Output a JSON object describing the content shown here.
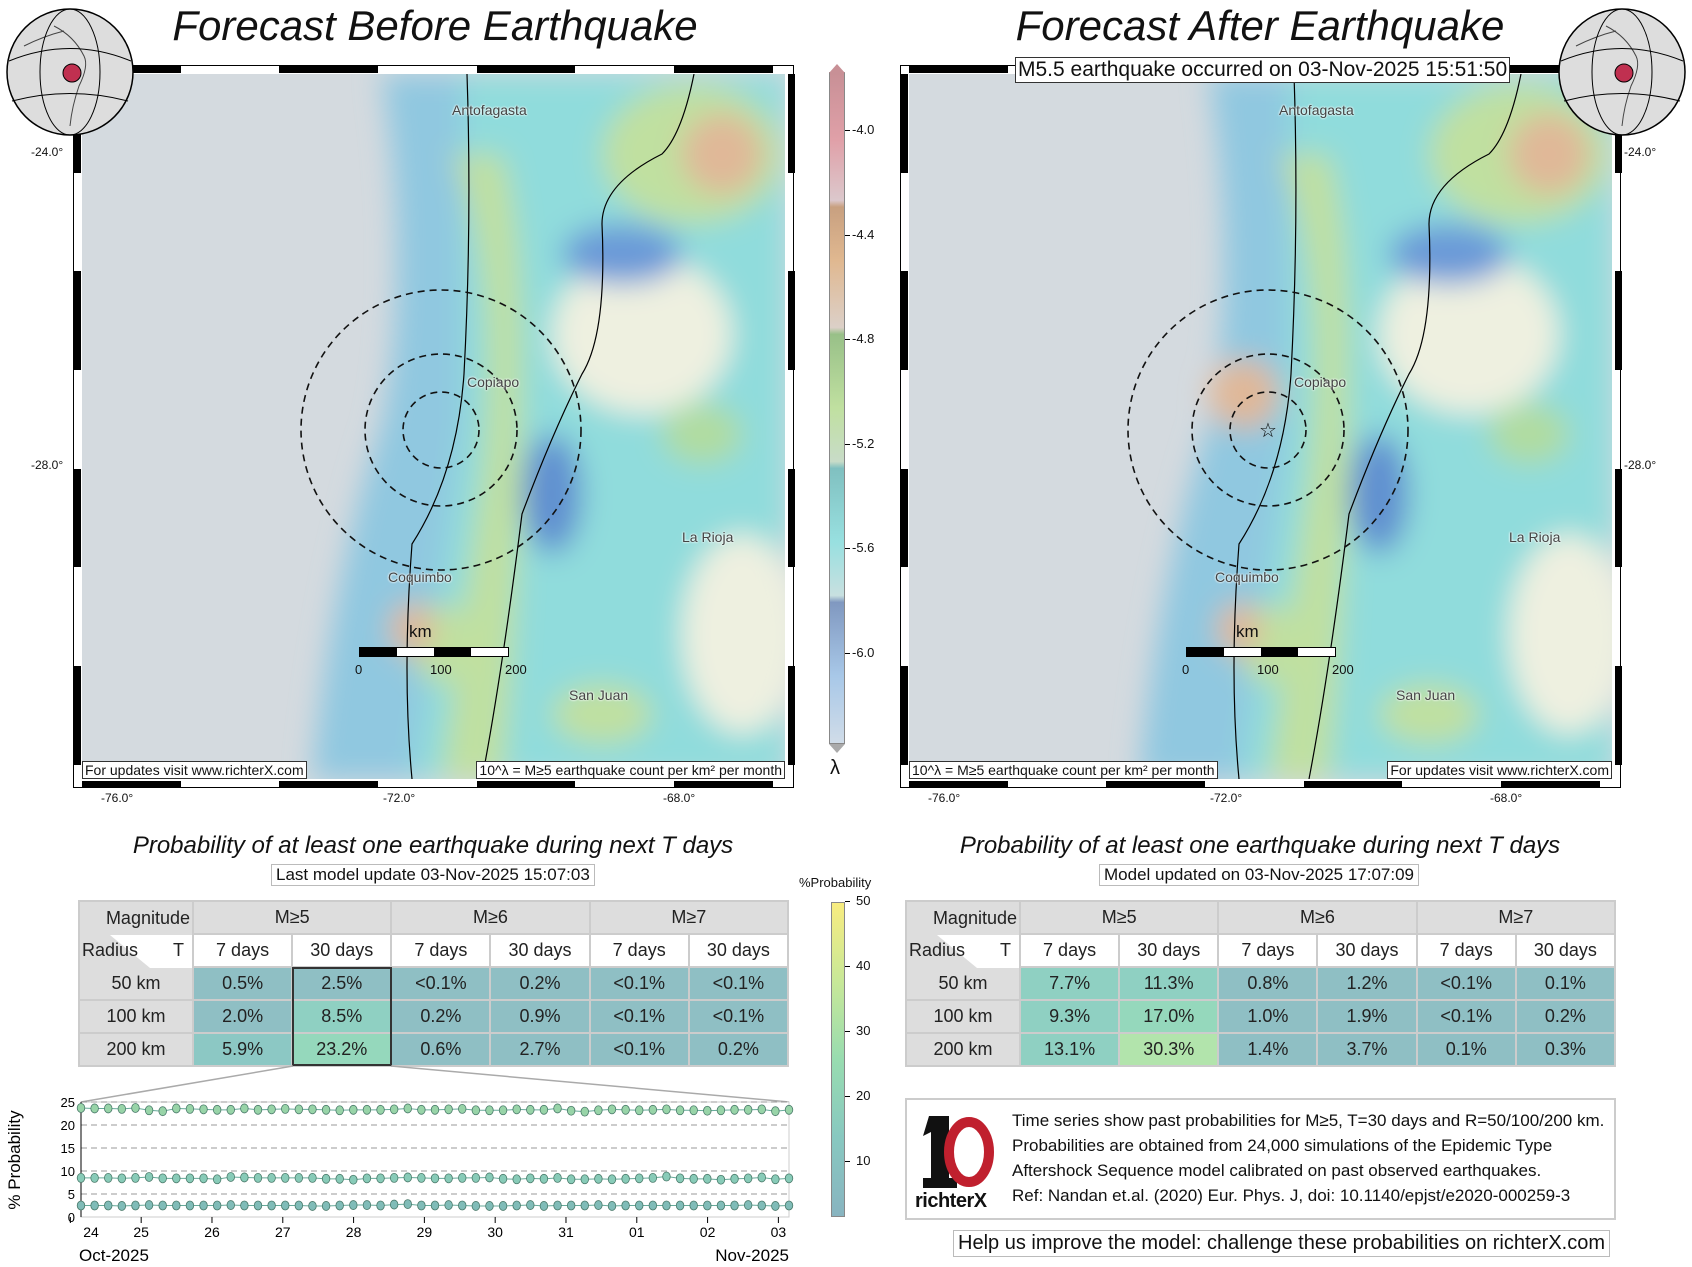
{
  "left_panel": {
    "title": "Forecast Before Earthquake",
    "footer_left": "For updates visit www.richterX.com",
    "footer_right": "10^λ = M≥5 earthquake count per km² per month",
    "lat_labels": [
      "-24.0°",
      "-28.0°"
    ],
    "lon_labels": [
      "-76.0°",
      "-72.0°",
      "-68.0°"
    ],
    "cities": [
      "Antofagasta",
      "Copiapo",
      "La Rioja",
      "Coquimbo",
      "San Juan"
    ],
    "scale_unit": "km",
    "scale_ticks": [
      "0",
      "100",
      "200"
    ],
    "table_title": "Probability of at least one earthquake during next T days",
    "table_subtitle": "Last model update 03-Nov-2025 15:07:03",
    "table": {
      "corner_top": "Magnitude",
      "corner_left": "Radius",
      "corner_right": "T",
      "magnitudes": [
        "M≥5",
        "M≥6",
        "M≥7"
      ],
      "periods": [
        "7 days",
        "30 days",
        "7 days",
        "30 days",
        "7 days",
        "30 days"
      ],
      "rows": [
        {
          "radius": "50 km",
          "values": [
            "0.5%",
            "2.5%",
            "<0.1%",
            "0.2%",
            "<0.1%",
            "<0.1%"
          ]
        },
        {
          "radius": "100 km",
          "values": [
            "2.0%",
            "8.5%",
            "0.2%",
            "0.9%",
            "<0.1%",
            "<0.1%"
          ]
        },
        {
          "radius": "200 km",
          "values": [
            "5.9%",
            "23.2%",
            "0.6%",
            "2.7%",
            "<0.1%",
            "0.2%"
          ]
        }
      ]
    }
  },
  "right_panel": {
    "title": "Forecast After Earthquake",
    "event_note": "M5.5 earthquake occurred on 03-Nov-2025 15:51:50",
    "footer_left": "10^λ = M≥5 earthquake count per km² per month",
    "footer_right": "For updates visit www.richterX.com",
    "lat_labels": [
      "-24.0°",
      "-28.0°"
    ],
    "lon_labels": [
      "-76.0°",
      "-72.0°",
      "-68.0°"
    ],
    "cities": [
      "Antofagasta",
      "Copiapo",
      "La Rioja",
      "Coquimbo",
      "San Juan"
    ],
    "scale_unit": "km",
    "scale_ticks": [
      "0",
      "100",
      "200"
    ],
    "table_title": "Probability of at least one earthquake during next T days",
    "table_subtitle": "Model updated on 03-Nov-2025 17:07:09",
    "table": {
      "corner_top": "Magnitude",
      "corner_left": "Radius",
      "corner_right": "T",
      "magnitudes": [
        "M≥5",
        "M≥6",
        "M≥7"
      ],
      "periods": [
        "7 days",
        "30 days",
        "7 days",
        "30 days",
        "7 days",
        "30 days"
      ],
      "rows": [
        {
          "radius": "50 km",
          "values": [
            "7.7%",
            "11.3%",
            "0.8%",
            "1.2%",
            "<0.1%",
            "0.1%"
          ]
        },
        {
          "radius": "100 km",
          "values": [
            "9.3%",
            "17.0%",
            "1.0%",
            "1.9%",
            "<0.1%",
            "0.2%"
          ]
        },
        {
          "radius": "200 km",
          "values": [
            "13.1%",
            "30.3%",
            "1.4%",
            "3.7%",
            "0.1%",
            "0.3%"
          ]
        }
      ]
    },
    "info_lines": [
      "Time series show past probabilities for M≥5, T=30 days and R=50/100/200 km.",
      "Probabilities are obtained from 24,000 simulations of the Epidemic Type",
      "Aftershock Sequence model calibrated on past observed earthquakes.",
      "Ref: Nandan et.al. (2020) Eur. Phys. J, doi: 10.1140/epjst/e2020-000259-3"
    ],
    "logo_text": "richterX",
    "help_text": "Help us improve the model: challenge these probabilities on richterX.com"
  },
  "lambda_colorbar": {
    "symbol": "λ",
    "ticks": [
      "-4.0",
      "-4.4",
      "-4.8",
      "-5.2",
      "-5.6",
      "-6.0"
    ]
  },
  "prob_colorbar": {
    "label": "%Probability",
    "ticks": [
      "50",
      "40",
      "30",
      "20",
      "10"
    ]
  },
  "colors": {
    "cell_low": "#8fbfc4",
    "cell_mid": "#8fd0c2",
    "cell_high": "#b2e4ac",
    "logo_red": "#c0202e"
  },
  "chart_data": {
    "type": "line",
    "ylabel": "% Probability",
    "ylim": [
      0,
      25
    ],
    "yticks": [
      "0",
      "5",
      "10",
      "15",
      "20",
      "25"
    ],
    "xlim_days": [
      24.15,
      34.15
    ],
    "xticks": [
      {
        "day": 24,
        "label": "24"
      },
      {
        "day": 25,
        "label": "25"
      },
      {
        "day": 26,
        "label": "26"
      },
      {
        "day": 27,
        "label": "27"
      },
      {
        "day": 28,
        "label": "28"
      },
      {
        "day": 29,
        "label": "29"
      },
      {
        "day": 30,
        "label": "30"
      },
      {
        "day": 31,
        "label": "31"
      },
      {
        "day": 32,
        "label": "01"
      },
      {
        "day": 33,
        "label": "02"
      },
      {
        "day": 34,
        "label": "03"
      }
    ],
    "x_start_label": "Oct-2025",
    "x_end_label": "Nov-2025",
    "series": [
      {
        "name": "R=200 km",
        "values": [
          23.7,
          23.6,
          23.6,
          23.5,
          23.7,
          23.2,
          23.0,
          23.6,
          23.5,
          23.4,
          23.3,
          23.3,
          23.6,
          23.3,
          23.4,
          23.5,
          23.4,
          23.4,
          23.3,
          23.2,
          23.3,
          23.3,
          23.3,
          23.4,
          23.6,
          23.3,
          23.3,
          23.4,
          23.5,
          23.2,
          23.2,
          23.2,
          23.4,
          23.3,
          23.3,
          23.6,
          23.1,
          22.9,
          23.2,
          23.4,
          23.3,
          23.2,
          23.3,
          23.4,
          23.2,
          23.2,
          23.1,
          23.2,
          23.3,
          23.3,
          23.4,
          23.0,
          23.3
        ]
      },
      {
        "name": "R=100 km",
        "values": [
          8.5,
          8.5,
          8.5,
          8.4,
          8.5,
          8.7,
          8.4,
          8.4,
          8.4,
          8.4,
          8.2,
          8.7,
          8.6,
          8.5,
          8.5,
          8.5,
          8.5,
          8.5,
          8.3,
          8.3,
          8.1,
          8.4,
          8.4,
          8.5,
          8.6,
          8.5,
          8.4,
          8.4,
          8.5,
          8.5,
          8.6,
          8.3,
          8.2,
          8.4,
          8.3,
          8.5,
          8.2,
          8.2,
          8.3,
          8.2,
          8.3,
          8.4,
          8.5,
          8.8,
          8.4,
          8.3,
          8.3,
          8.1,
          8.3,
          8.4,
          8.6,
          8.2,
          8.4
        ]
      },
      {
        "name": "R=50 km",
        "values": [
          2.5,
          2.5,
          2.5,
          2.4,
          2.5,
          2.6,
          2.5,
          2.5,
          2.5,
          2.5,
          2.5,
          2.6,
          2.5,
          2.5,
          2.5,
          2.5,
          2.5,
          2.4,
          2.4,
          2.5,
          2.6,
          2.6,
          2.5,
          2.7,
          2.8,
          2.5,
          2.5,
          2.6,
          2.5,
          2.4,
          2.4,
          2.4,
          2.5,
          2.6,
          2.4,
          2.5,
          2.5,
          2.5,
          2.6,
          2.4,
          2.5,
          2.5,
          2.5,
          2.5,
          2.5,
          2.5,
          2.5,
          2.5,
          2.5,
          2.6,
          2.5,
          2.4,
          2.5
        ]
      }
    ]
  }
}
